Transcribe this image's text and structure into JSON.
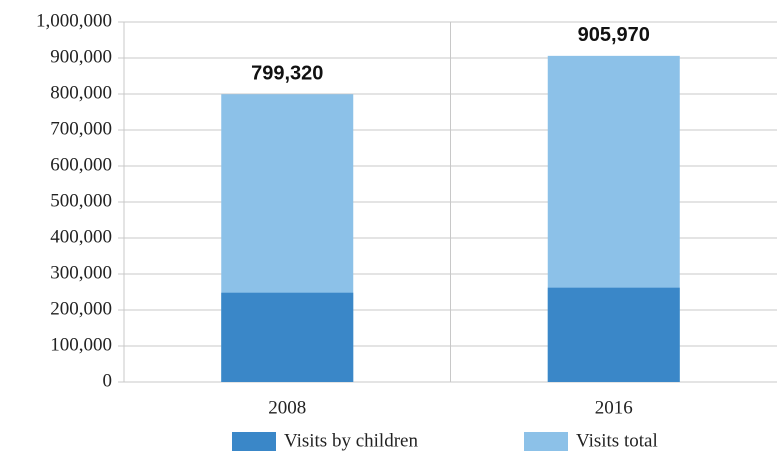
{
  "chart_data": {
    "type": "bar",
    "categories": [
      "2008",
      "2016"
    ],
    "series": [
      {
        "name": "Visits total",
        "color": "#8cc1e8",
        "values": [
          799320,
          905970
        ],
        "value_labels": [
          "799,320",
          "905,970"
        ]
      },
      {
        "name": "Visits by children",
        "color": "#3a87c8",
        "values": [
          248000,
          262000
        ]
      }
    ],
    "ylim": [
      0,
      1000000
    ],
    "yticks": [
      0,
      {
        "value": 100000,
        "label": "100,000"
      },
      {
        "value": 200000,
        "label": "200,000"
      },
      {
        "value": 300000,
        "label": "300,000"
      },
      {
        "value": 400000,
        "label": "400,000"
      },
      {
        "value": 500000,
        "label": "500,000"
      },
      {
        "value": 600000,
        "label": "600,000"
      },
      {
        "value": 700000,
        "label": "700,000"
      },
      {
        "value": 800000,
        "label": "800,000"
      },
      {
        "value": 900000,
        "label": "900,000"
      },
      {
        "value": 1000000,
        "label": "1,000,000"
      }
    ],
    "grid": true
  }
}
